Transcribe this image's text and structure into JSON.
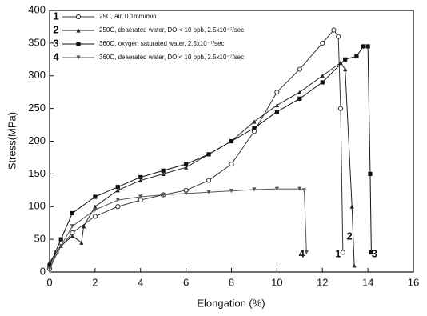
{
  "chart_data": {
    "type": "line",
    "x_label": "Elongation (%)",
    "y_label": "Stress(MPa)",
    "xlim": [
      0,
      16
    ],
    "xticks": [
      0,
      2,
      4,
      6,
      8,
      10,
      12,
      14,
      16
    ],
    "ylim": [
      0,
      400
    ],
    "yticks": [
      0,
      50,
      100,
      150,
      200,
      250,
      300,
      350,
      400
    ],
    "series": [
      {
        "name": "25C, air, 0.1mm/min",
        "label": "1",
        "color": "#333333",
        "marker": "circle",
        "x": [
          0,
          0.3,
          1,
          2,
          3,
          4,
          5,
          6,
          7,
          8,
          9,
          10,
          11,
          12,
          12.5,
          12.7,
          12.8,
          12.9
        ],
        "values": [
          5,
          30,
          60,
          85,
          100,
          110,
          118,
          125,
          140,
          165,
          215,
          275,
          310,
          350,
          370,
          360,
          250,
          30
        ]
      },
      {
        "name": "250C, deaerated water, DO < 10 ppb, 2.5x10⁻⁷/sec",
        "label": "2",
        "color": "#222222",
        "marker": "triangle",
        "x": [
          0,
          0.5,
          1,
          1.4,
          1.5,
          2,
          3,
          4,
          5,
          6,
          7,
          8,
          9,
          10,
          11,
          12,
          12.8,
          13,
          13.3,
          13.4
        ],
        "values": [
          15,
          40,
          55,
          45,
          70,
          100,
          125,
          140,
          150,
          160,
          180,
          200,
          230,
          255,
          275,
          300,
          320,
          310,
          100,
          10
        ]
      },
      {
        "name": "360C, oxygen saturated water, 2.5x10⁻⁷/sec",
        "label": "3",
        "color": "#111111",
        "marker": "square",
        "x": [
          0,
          0.5,
          1,
          2,
          3,
          4,
          5,
          6,
          7,
          8,
          9,
          10,
          11,
          12,
          13,
          13.5,
          13.8,
          14,
          14.1,
          14.15
        ],
        "values": [
          10,
          50,
          90,
          115,
          130,
          145,
          155,
          165,
          180,
          200,
          220,
          245,
          265,
          290,
          325,
          330,
          345,
          345,
          150,
          30
        ]
      },
      {
        "name": "360C, deaerated water, DO < 10 ppb, 2.5x10⁻⁷/sec",
        "label": "4",
        "color": "#555555",
        "marker": "invtriangle",
        "x": [
          0,
          0.5,
          1,
          2,
          3,
          4,
          5,
          6,
          7,
          8,
          9,
          10,
          11,
          11.2,
          11.3
        ],
        "values": [
          5,
          40,
          70,
          95,
          110,
          115,
          118,
          120,
          122,
          124,
          126,
          127,
          127,
          125,
          30
        ]
      }
    ]
  }
}
